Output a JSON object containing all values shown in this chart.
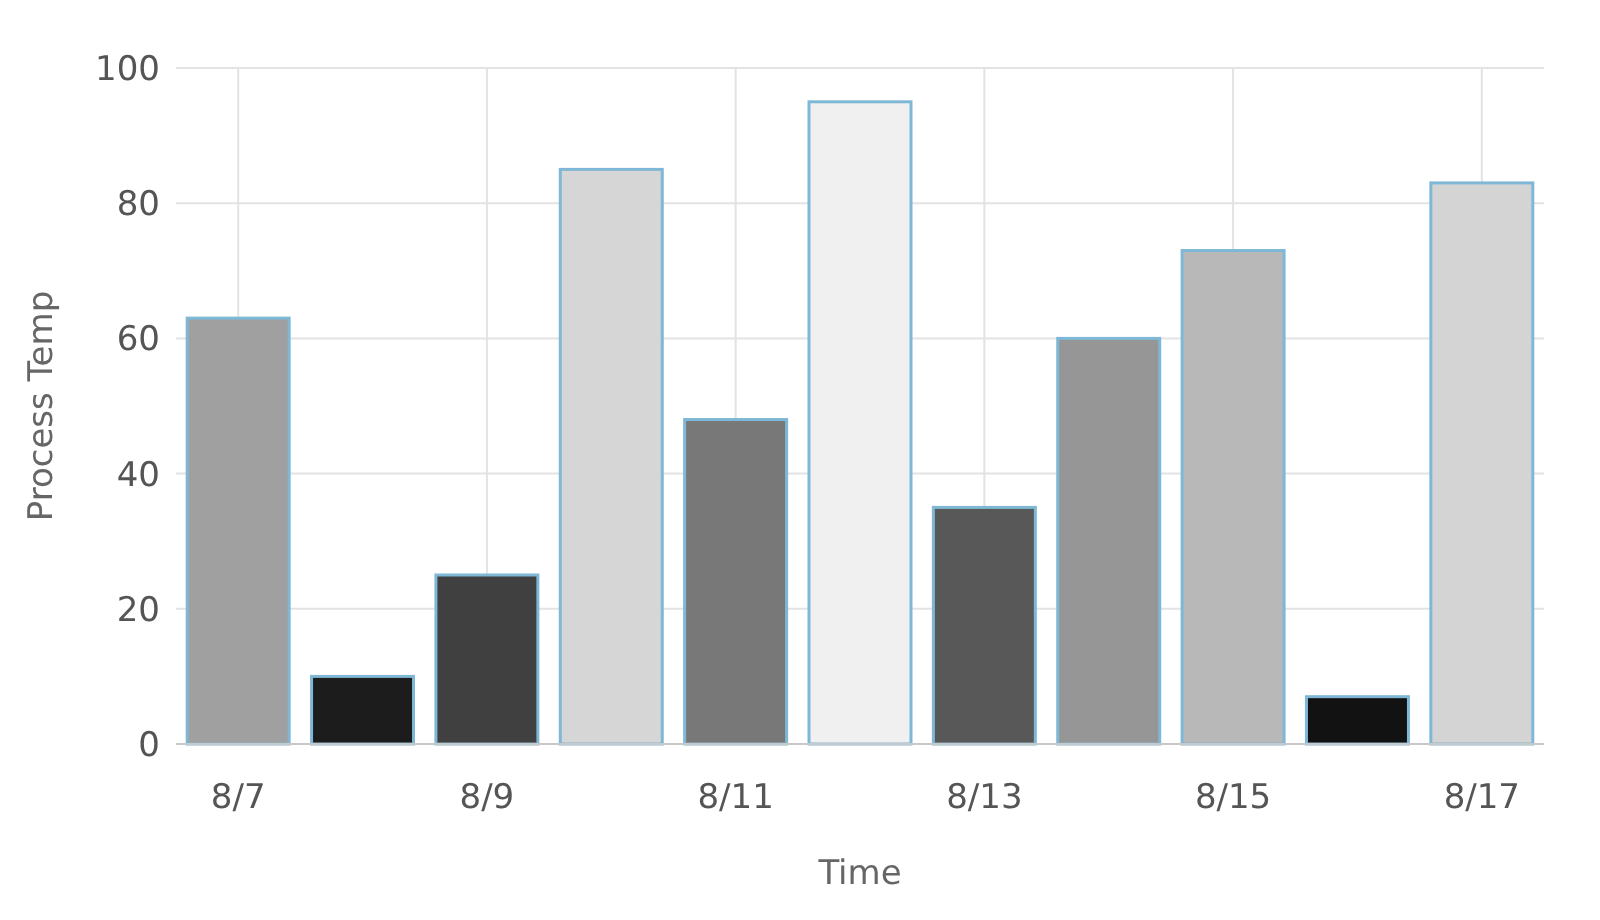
{
  "chart_data": {
    "type": "bar",
    "xlabel": "Time",
    "ylabel": "Process Temp",
    "categories": [
      "8/7",
      null,
      "8/9",
      null,
      "8/11",
      null,
      "8/13",
      null,
      "8/15",
      null,
      "8/17"
    ],
    "values": [
      63,
      10,
      25,
      85,
      48,
      95,
      35,
      60,
      73,
      7,
      83
    ],
    "colors": [
      "#a0a0a0",
      "#1c1c1c",
      "#404040",
      "#d6d6d6",
      "#787878",
      "#f0f0f0",
      "#585858",
      "#969696",
      "#b8b8b8",
      "#121212",
      "#d4d4d4"
    ],
    "ylim": [
      0,
      100
    ],
    "yticks": [
      0,
      20,
      40,
      60,
      80,
      100
    ],
    "grid": true
  }
}
